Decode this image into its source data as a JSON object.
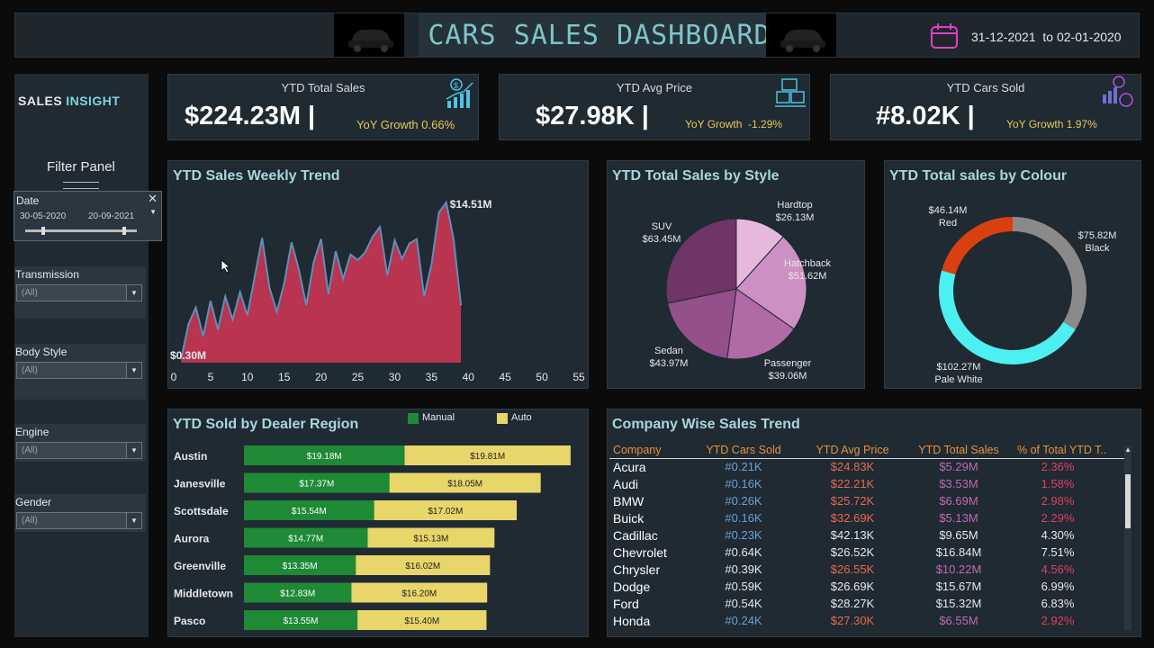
{
  "header": {
    "title": "CARS SALES DASHBOARD",
    "date_start": "31-12-2021",
    "date_sep": "to",
    "date_end": "02-01-2020"
  },
  "sidebar": {
    "brand_1": "SALES",
    "brand_2": "INSIGHT",
    "filter_title": "Filter Panel",
    "date_filter": {
      "label": "Date",
      "from": "30-05-2020",
      "to": "20-09-2021"
    },
    "filters": [
      {
        "label": "Transmission",
        "value": "(All)"
      },
      {
        "label": "Body Style",
        "value": "(All)"
      },
      {
        "label": "Engine",
        "value": "(All)"
      },
      {
        "label": "Gender",
        "value": "(All)"
      }
    ]
  },
  "kpis": [
    {
      "title": "YTD Total Sales",
      "value": "$224.23M",
      "growth_label": "YoY Growth",
      "growth": "0.66%"
    },
    {
      "title": "YTD Avg Price",
      "value": "$27.98K",
      "growth_label": "YoY Growth",
      "growth": "-1.29%"
    },
    {
      "title": "YTD Cars Sold",
      "value": "#8.02K",
      "growth_label": "YoY Growth",
      "growth": "1.97%"
    }
  ],
  "weekly": {
    "title": "YTD Sales Weekly Trend",
    "max_label": "$14.51M",
    "min_label": "$0.30M"
  },
  "style": {
    "title": "YTD Total Sales by Style",
    "slices": [
      {
        "name": "Hardtop",
        "value": "$26.13M"
      },
      {
        "name": "Hatchback",
        "value": "$51.62M"
      },
      {
        "name": "Passenger",
        "value": "$39.06M"
      },
      {
        "name": "Sedan",
        "value": "$43.97M"
      },
      {
        "name": "SUV",
        "value": "$63.45M"
      }
    ]
  },
  "colour": {
    "title": "YTD Total sales by Colour",
    "slices": [
      {
        "name": "Red",
        "value": "$46.14M"
      },
      {
        "name": "Black",
        "value": "$75.82M"
      },
      {
        "name": "Pale White",
        "value": "$102.27M"
      }
    ]
  },
  "dealer": {
    "title": "YTD Sold by Dealer Region",
    "legend_manual": "Manual",
    "legend_auto": "Auto"
  },
  "company": {
    "title": "Company Wise Sales Trend",
    "columns": [
      "Company",
      "YTD Cars Sold",
      "YTD Avg Price",
      "YTD Total Sales",
      "% of Total YTD T.."
    ],
    "rows": [
      [
        "Acura",
        "#0.21K",
        "$24.83K",
        "$5.29M",
        "2.36%"
      ],
      [
        "Audi",
        "#0.16K",
        "$22.21K",
        "$3.53M",
        "1.58%"
      ],
      [
        "BMW",
        "#0.26K",
        "$25.72K",
        "$6.69M",
        "2.98%"
      ],
      [
        "Buick",
        "#0.16K",
        "$32.69K",
        "$5.13M",
        "2.29%"
      ],
      [
        "Cadillac",
        "#0.23K",
        "$42.13K",
        "$9.65M",
        "4.30%"
      ],
      [
        "Chevrolet",
        "#0.64K",
        "$26.52K",
        "$16.84M",
        "7.51%"
      ],
      [
        "Chrysler",
        "#0.39K",
        "$26.55K",
        "$10.22M",
        "4.56%"
      ],
      [
        "Dodge",
        "#0.59K",
        "$26.69K",
        "$15.67M",
        "6.99%"
      ],
      [
        "Ford",
        "#0.54K",
        "$28.27K",
        "$15.32M",
        "6.83%"
      ],
      [
        "Honda",
        "#0.24K",
        "$27.30K",
        "$6.55M",
        "2.92%"
      ]
    ]
  },
  "colors": {
    "area": "#b8344f",
    "manual": "#1f8a35",
    "auto": "#e9d66b",
    "ring_red": "#d9400f",
    "ring_black": "#8a8a8a",
    "ring_white": "#4df0f0"
  },
  "chart_data": [
    {
      "type": "area",
      "title": "YTD Sales Weekly Trend",
      "x": [
        1,
        2,
        3,
        4,
        5,
        6,
        7,
        8,
        9,
        10,
        11,
        12,
        13,
        14,
        15,
        16,
        17,
        18,
        19,
        20,
        21,
        22,
        23,
        24,
        25,
        26,
        27,
        28,
        29,
        30,
        31,
        32,
        33,
        34,
        35,
        36,
        37,
        38,
        39
      ],
      "values": [
        0.3,
        3.5,
        5.0,
        2.4,
        5.6,
        3.0,
        6.0,
        3.9,
        6.4,
        4.3,
        7.8,
        11.3,
        6.8,
        4.6,
        7.2,
        10.9,
        8.4,
        5.2,
        9.1,
        11.2,
        6.2,
        10.1,
        7.6,
        9.8,
        9.3,
        10.0,
        11.4,
        12.3,
        7.9,
        11.1,
        9.4,
        10.8,
        11.2,
        6.0,
        8.9,
        13.6,
        14.51,
        11.2,
        5.2
      ],
      "xlim": [
        0,
        55
      ],
      "xticks": [
        0,
        5,
        10,
        15,
        20,
        25,
        30,
        35,
        40,
        45,
        50,
        55
      ],
      "ylim": [
        0,
        15
      ]
    },
    {
      "type": "pie",
      "title": "YTD Total Sales by Style",
      "categories": [
        "Hardtop",
        "Hatchback",
        "Passenger",
        "Sedan",
        "SUV"
      ],
      "values": [
        26.13,
        51.62,
        39.06,
        43.97,
        63.45
      ],
      "colors": [
        "#e6b9dc",
        "#cd90c2",
        "#b06aa5",
        "#93508a",
        "#6f3566"
      ]
    },
    {
      "type": "pie",
      "title": "YTD Total sales by Colour",
      "categories": [
        "Black",
        "Pale White",
        "Red"
      ],
      "values": [
        75.82,
        102.27,
        46.14
      ],
      "colors": [
        "#8a8a8a",
        "#4df0f0",
        "#d9400f"
      ]
    },
    {
      "type": "bar",
      "title": "YTD Sold by Dealer Region",
      "categories": [
        "Austin",
        "Janesville",
        "Scottsdale",
        "Aurora",
        "Greenville",
        "Middletown",
        "Pasco"
      ],
      "series": [
        {
          "name": "Manual",
          "values": [
            19.18,
            17.37,
            15.54,
            14.77,
            13.35,
            12.83,
            13.55
          ],
          "labels": [
            "$19.18M",
            "$17.37M",
            "$15.54M",
            "$14.77M",
            "$13.35M",
            "$12.83M",
            "$13.55M"
          ]
        },
        {
          "name": "Auto",
          "values": [
            19.81,
            18.05,
            17.02,
            15.13,
            16.02,
            16.2,
            15.4
          ],
          "labels": [
            "$19.81M",
            "$18.05M",
            "$17.02M",
            "$15.13M",
            "$16.02M",
            "$16.20M",
            "$15.40M"
          ]
        }
      ]
    }
  ]
}
